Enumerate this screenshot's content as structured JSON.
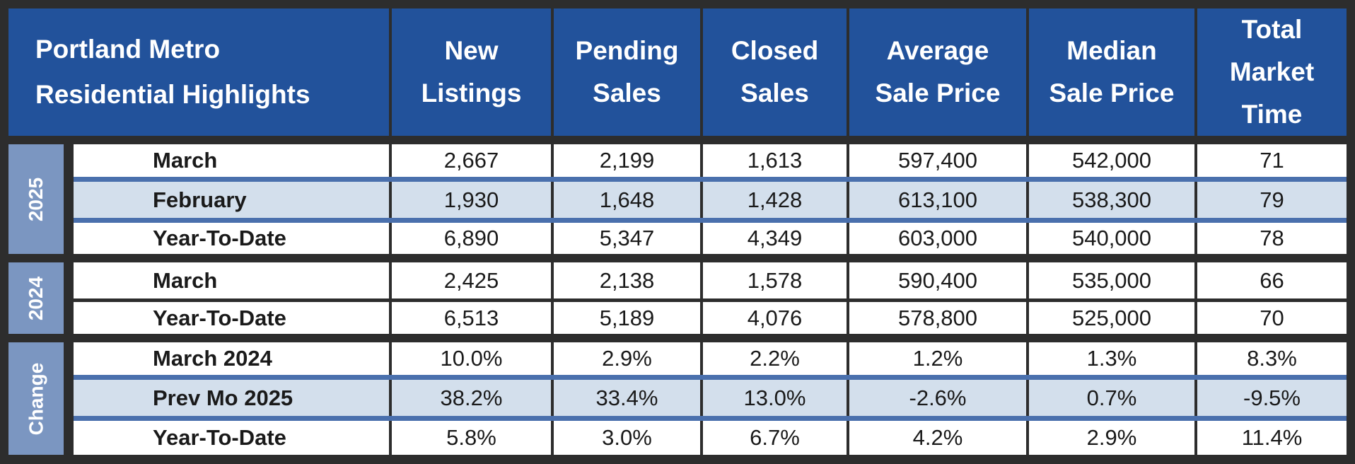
{
  "header": {
    "title_line1": "Portland Metro",
    "title_line2": "Residential Highlights",
    "columns": [
      [
        "New",
        "Listings"
      ],
      [
        "Pending",
        "Sales"
      ],
      [
        "Closed",
        "Sales"
      ],
      [
        "Average",
        "Sale Price"
      ],
      [
        "Median",
        "Sale Price"
      ],
      [
        "Total",
        "Market",
        "Time"
      ]
    ]
  },
  "groups": [
    "2025",
    "2024",
    "Change"
  ],
  "rows": [
    {
      "label": "March",
      "values": [
        "2,667",
        "2,199",
        "1,613",
        "597,400",
        "542,000",
        "71"
      ]
    },
    {
      "label": "February",
      "values": [
        "1,930",
        "1,648",
        "1,428",
        "613,100",
        "538,300",
        "79"
      ]
    },
    {
      "label": "Year-To-Date",
      "values": [
        "6,890",
        "5,347",
        "4,349",
        "603,000",
        "540,000",
        "78"
      ]
    },
    {
      "label": "March",
      "values": [
        "2,425",
        "2,138",
        "1,578",
        "590,400",
        "535,000",
        "66"
      ]
    },
    {
      "label": "Year-To-Date",
      "values": [
        "6,513",
        "5,189",
        "4,076",
        "578,800",
        "525,000",
        "70"
      ]
    },
    {
      "label": "March 2024",
      "values": [
        "10.0%",
        "2.9%",
        "2.2%",
        "1.2%",
        "1.3%",
        "8.3%"
      ]
    },
    {
      "label": "Prev Mo 2025",
      "values": [
        "38.2%",
        "33.4%",
        "13.0%",
        "-2.6%",
        "0.7%",
        "-9.5%"
      ]
    },
    {
      "label": "Year-To-Date",
      "values": [
        "5.8%",
        "3.0%",
        "6.7%",
        "4.2%",
        "2.9%",
        "11.4%"
      ]
    }
  ],
  "colors": {
    "header_bg": "#22529b",
    "group_bg": "#7b96c1",
    "alt_row_bg": "#d3dfec",
    "separator": "#4a70ad",
    "frame": "#2d2d2d"
  }
}
